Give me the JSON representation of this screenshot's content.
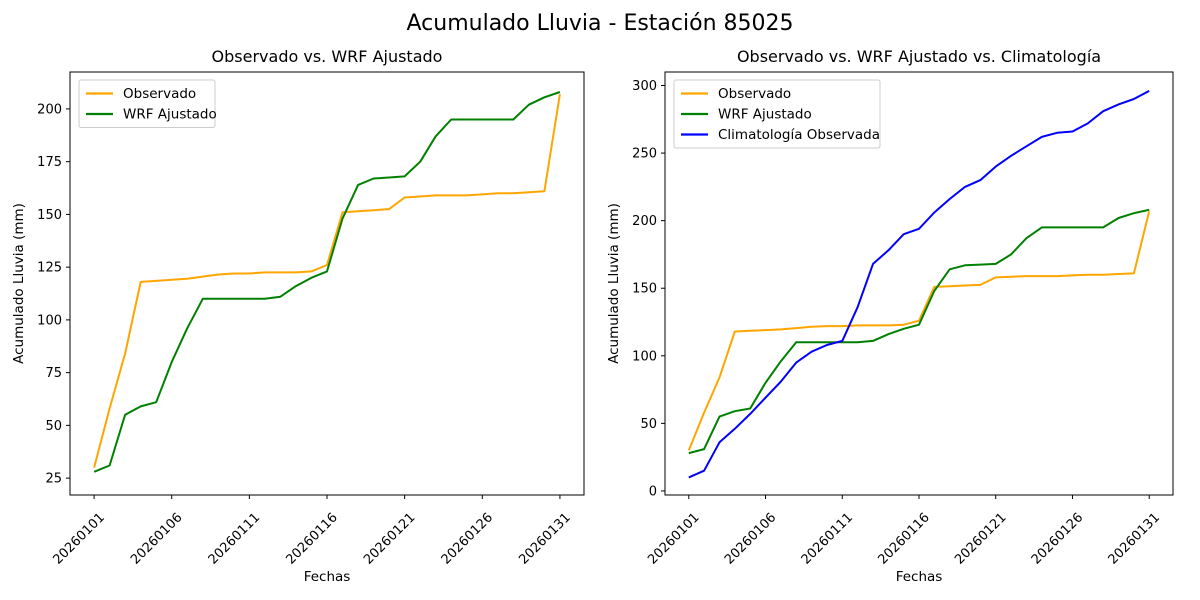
{
  "figure": {
    "suptitle": "Acumulado Lluvia - Estación 85025",
    "background_color": "#ffffff",
    "text_color": "#000000"
  },
  "colors": {
    "observado": "#FFA500",
    "wrf_ajustado": "#008000",
    "climatologia": "#0000FF",
    "spine": "#000000",
    "legend_border": "#cccccc"
  },
  "chart_data": [
    {
      "type": "line",
      "title": "Observado vs. WRF Ajustado",
      "xlabel": "Fechas",
      "ylabel": "Acumulado Lluvia (mm)",
      "categories": [
        "20260101",
        "20260102",
        "20260103",
        "20260104",
        "20260105",
        "20260106",
        "20260107",
        "20260108",
        "20260109",
        "20260110",
        "20260111",
        "20260112",
        "20260113",
        "20260114",
        "20260115",
        "20260116",
        "20260117",
        "20260118",
        "20260119",
        "20260120",
        "20260121",
        "20260122",
        "20260123",
        "20260124",
        "20260125",
        "20260126",
        "20260127",
        "20260128",
        "20260129",
        "20260130",
        "20260131"
      ],
      "xtick_labels": [
        "20260101",
        "20260106",
        "20260111",
        "20260116",
        "20260121",
        "20260126",
        "20260131"
      ],
      "xtick_rotation": 45,
      "ytick_values": [
        25,
        50,
        75,
        100,
        125,
        150,
        175,
        200
      ],
      "ylim": [
        17,
        217.5
      ],
      "grid": false,
      "legend_position": "upper left",
      "series": [
        {
          "name": "Observado",
          "color": "#FFA500",
          "values": [
            30,
            58,
            84,
            118,
            118.5,
            119,
            119.5,
            120.5,
            121.5,
            122,
            122,
            122.5,
            122.5,
            122.5,
            123,
            126,
            151,
            151.5,
            152,
            152.5,
            158,
            158.5,
            159,
            159,
            159,
            159.5,
            160,
            160,
            160.5,
            161,
            207
          ]
        },
        {
          "name": "WRF Ajustado",
          "color": "#008000",
          "values": [
            28,
            31,
            55,
            59,
            61,
            80,
            96,
            110,
            110,
            110,
            110,
            110,
            111,
            116,
            120,
            123,
            148,
            164,
            167,
            167.5,
            168,
            175,
            187,
            195,
            195,
            195,
            195,
            195,
            202,
            205.5,
            208
          ]
        }
      ]
    },
    {
      "type": "line",
      "title": "Observado vs. WRF Ajustado vs. Climatología",
      "xlabel": "Fechas",
      "ylabel": "Acumulado Lluvia (mm)",
      "categories": [
        "20260101",
        "20260102",
        "20260103",
        "20260104",
        "20260105",
        "20260106",
        "20260107",
        "20260108",
        "20260109",
        "20260110",
        "20260111",
        "20260112",
        "20260113",
        "20260114",
        "20260115",
        "20260116",
        "20260117",
        "20260118",
        "20260119",
        "20260120",
        "20260121",
        "20260122",
        "20260123",
        "20260124",
        "20260125",
        "20260126",
        "20260127",
        "20260128",
        "20260129",
        "20260130",
        "20260131"
      ],
      "xtick_labels": [
        "20260101",
        "20260106",
        "20260111",
        "20260116",
        "20260121",
        "20260126",
        "20260131"
      ],
      "xtick_rotation": 45,
      "ytick_values": [
        0,
        50,
        100,
        150,
        200,
        250,
        300
      ],
      "ylim": [
        -3,
        310
      ],
      "grid": false,
      "legend_position": "upper left",
      "series": [
        {
          "name": "Observado",
          "color": "#FFA500",
          "values": [
            30,
            58,
            84,
            118,
            118.5,
            119,
            119.5,
            120.5,
            121.5,
            122,
            122,
            122.5,
            122.5,
            122.5,
            123,
            126,
            151,
            151.5,
            152,
            152.5,
            158,
            158.5,
            159,
            159,
            159,
            159.5,
            160,
            160,
            160.5,
            161,
            207
          ]
        },
        {
          "name": "WRF Ajustado",
          "color": "#008000",
          "values": [
            28,
            31,
            55,
            59,
            61,
            80,
            96,
            110,
            110,
            110,
            110,
            110,
            111,
            116,
            120,
            123,
            148,
            164,
            167,
            167.5,
            168,
            175,
            187,
            195,
            195,
            195,
            195,
            195,
            202,
            205.5,
            208
          ]
        },
        {
          "name": "Climatología Observada",
          "color": "#0000FF",
          "values": [
            10,
            15,
            36,
            46,
            57,
            69,
            81,
            95,
            103,
            108,
            111,
            136,
            168,
            178,
            190,
            194,
            206,
            216,
            225,
            230,
            240,
            248,
            255,
            262,
            265,
            266,
            272,
            281,
            286,
            290,
            296
          ]
        }
      ]
    }
  ]
}
